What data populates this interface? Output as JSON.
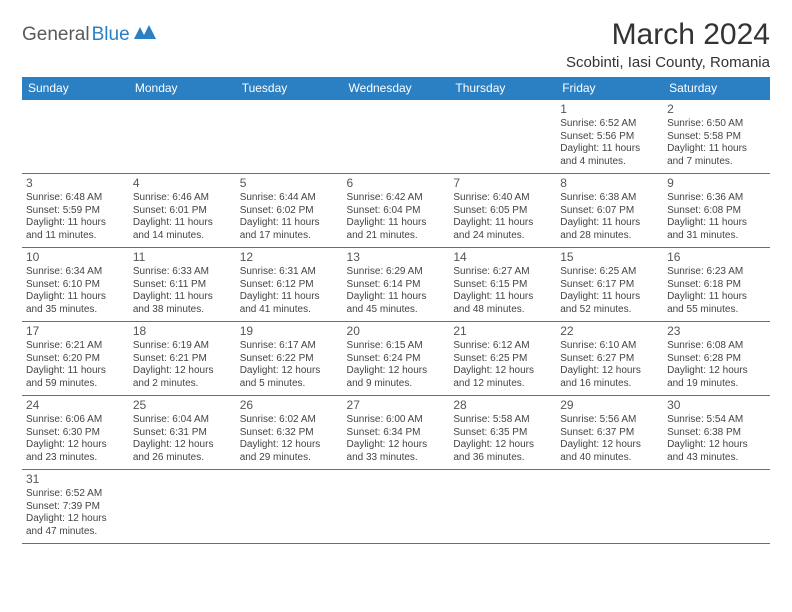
{
  "logo": {
    "part1": "General",
    "part2": "Blue"
  },
  "title": "March 2024",
  "location": "Scobinti, Iasi County, Romania",
  "colors": {
    "header_bg": "#2b7fc3",
    "header_text": "#ffffff",
    "border": "#2b7fc3",
    "text": "#444444",
    "logo_gray": "#5a5a5a",
    "logo_blue": "#2b7fc3"
  },
  "weekdays": [
    "Sunday",
    "Monday",
    "Tuesday",
    "Wednesday",
    "Thursday",
    "Friday",
    "Saturday"
  ],
  "weeks": [
    [
      null,
      null,
      null,
      null,
      null,
      {
        "day": "1",
        "sunrise": "Sunrise: 6:52 AM",
        "sunset": "Sunset: 5:56 PM",
        "daylight": "Daylight: 11 hours and 4 minutes."
      },
      {
        "day": "2",
        "sunrise": "Sunrise: 6:50 AM",
        "sunset": "Sunset: 5:58 PM",
        "daylight": "Daylight: 11 hours and 7 minutes."
      }
    ],
    [
      {
        "day": "3",
        "sunrise": "Sunrise: 6:48 AM",
        "sunset": "Sunset: 5:59 PM",
        "daylight": "Daylight: 11 hours and 11 minutes."
      },
      {
        "day": "4",
        "sunrise": "Sunrise: 6:46 AM",
        "sunset": "Sunset: 6:01 PM",
        "daylight": "Daylight: 11 hours and 14 minutes."
      },
      {
        "day": "5",
        "sunrise": "Sunrise: 6:44 AM",
        "sunset": "Sunset: 6:02 PM",
        "daylight": "Daylight: 11 hours and 17 minutes."
      },
      {
        "day": "6",
        "sunrise": "Sunrise: 6:42 AM",
        "sunset": "Sunset: 6:04 PM",
        "daylight": "Daylight: 11 hours and 21 minutes."
      },
      {
        "day": "7",
        "sunrise": "Sunrise: 6:40 AM",
        "sunset": "Sunset: 6:05 PM",
        "daylight": "Daylight: 11 hours and 24 minutes."
      },
      {
        "day": "8",
        "sunrise": "Sunrise: 6:38 AM",
        "sunset": "Sunset: 6:07 PM",
        "daylight": "Daylight: 11 hours and 28 minutes."
      },
      {
        "day": "9",
        "sunrise": "Sunrise: 6:36 AM",
        "sunset": "Sunset: 6:08 PM",
        "daylight": "Daylight: 11 hours and 31 minutes."
      }
    ],
    [
      {
        "day": "10",
        "sunrise": "Sunrise: 6:34 AM",
        "sunset": "Sunset: 6:10 PM",
        "daylight": "Daylight: 11 hours and 35 minutes."
      },
      {
        "day": "11",
        "sunrise": "Sunrise: 6:33 AM",
        "sunset": "Sunset: 6:11 PM",
        "daylight": "Daylight: 11 hours and 38 minutes."
      },
      {
        "day": "12",
        "sunrise": "Sunrise: 6:31 AM",
        "sunset": "Sunset: 6:12 PM",
        "daylight": "Daylight: 11 hours and 41 minutes."
      },
      {
        "day": "13",
        "sunrise": "Sunrise: 6:29 AM",
        "sunset": "Sunset: 6:14 PM",
        "daylight": "Daylight: 11 hours and 45 minutes."
      },
      {
        "day": "14",
        "sunrise": "Sunrise: 6:27 AM",
        "sunset": "Sunset: 6:15 PM",
        "daylight": "Daylight: 11 hours and 48 minutes."
      },
      {
        "day": "15",
        "sunrise": "Sunrise: 6:25 AM",
        "sunset": "Sunset: 6:17 PM",
        "daylight": "Daylight: 11 hours and 52 minutes."
      },
      {
        "day": "16",
        "sunrise": "Sunrise: 6:23 AM",
        "sunset": "Sunset: 6:18 PM",
        "daylight": "Daylight: 11 hours and 55 minutes."
      }
    ],
    [
      {
        "day": "17",
        "sunrise": "Sunrise: 6:21 AM",
        "sunset": "Sunset: 6:20 PM",
        "daylight": "Daylight: 11 hours and 59 minutes."
      },
      {
        "day": "18",
        "sunrise": "Sunrise: 6:19 AM",
        "sunset": "Sunset: 6:21 PM",
        "daylight": "Daylight: 12 hours and 2 minutes."
      },
      {
        "day": "19",
        "sunrise": "Sunrise: 6:17 AM",
        "sunset": "Sunset: 6:22 PM",
        "daylight": "Daylight: 12 hours and 5 minutes."
      },
      {
        "day": "20",
        "sunrise": "Sunrise: 6:15 AM",
        "sunset": "Sunset: 6:24 PM",
        "daylight": "Daylight: 12 hours and 9 minutes."
      },
      {
        "day": "21",
        "sunrise": "Sunrise: 6:12 AM",
        "sunset": "Sunset: 6:25 PM",
        "daylight": "Daylight: 12 hours and 12 minutes."
      },
      {
        "day": "22",
        "sunrise": "Sunrise: 6:10 AM",
        "sunset": "Sunset: 6:27 PM",
        "daylight": "Daylight: 12 hours and 16 minutes."
      },
      {
        "day": "23",
        "sunrise": "Sunrise: 6:08 AM",
        "sunset": "Sunset: 6:28 PM",
        "daylight": "Daylight: 12 hours and 19 minutes."
      }
    ],
    [
      {
        "day": "24",
        "sunrise": "Sunrise: 6:06 AM",
        "sunset": "Sunset: 6:30 PM",
        "daylight": "Daylight: 12 hours and 23 minutes."
      },
      {
        "day": "25",
        "sunrise": "Sunrise: 6:04 AM",
        "sunset": "Sunset: 6:31 PM",
        "daylight": "Daylight: 12 hours and 26 minutes."
      },
      {
        "day": "26",
        "sunrise": "Sunrise: 6:02 AM",
        "sunset": "Sunset: 6:32 PM",
        "daylight": "Daylight: 12 hours and 29 minutes."
      },
      {
        "day": "27",
        "sunrise": "Sunrise: 6:00 AM",
        "sunset": "Sunset: 6:34 PM",
        "daylight": "Daylight: 12 hours and 33 minutes."
      },
      {
        "day": "28",
        "sunrise": "Sunrise: 5:58 AM",
        "sunset": "Sunset: 6:35 PM",
        "daylight": "Daylight: 12 hours and 36 minutes."
      },
      {
        "day": "29",
        "sunrise": "Sunrise: 5:56 AM",
        "sunset": "Sunset: 6:37 PM",
        "daylight": "Daylight: 12 hours and 40 minutes."
      },
      {
        "day": "30",
        "sunrise": "Sunrise: 5:54 AM",
        "sunset": "Sunset: 6:38 PM",
        "daylight": "Daylight: 12 hours and 43 minutes."
      }
    ],
    [
      {
        "day": "31",
        "sunrise": "Sunrise: 6:52 AM",
        "sunset": "Sunset: 7:39 PM",
        "daylight": "Daylight: 12 hours and 47 minutes."
      },
      null,
      null,
      null,
      null,
      null,
      null
    ]
  ]
}
